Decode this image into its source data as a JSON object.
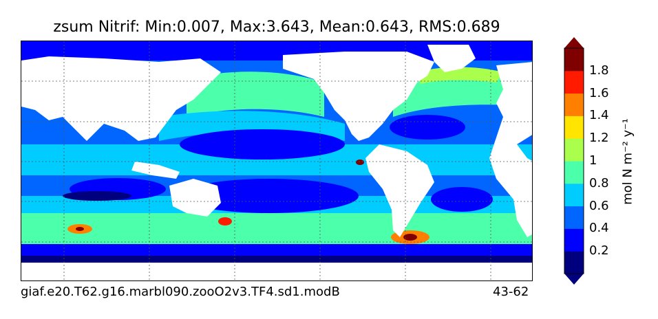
{
  "title": "zsum Nitrif: Min:0.007, Max:3.643, Mean:0.643, RMS:0.689",
  "caption_left": "giaf.e20.T62.g16.marbl090.zooO2v3.TF4.sd1.modB",
  "caption_right": "43-62",
  "colorbar": {
    "label": "mol N m⁻² y⁻¹",
    "ticks": [
      "0.2",
      "0.4",
      "0.6",
      "0.8",
      "1",
      "1.2",
      "1.4",
      "1.6",
      "1.8"
    ],
    "levels": [
      0,
      0.2,
      0.4,
      0.6,
      0.8,
      1.0,
      1.2,
      1.4,
      1.6,
      1.8,
      2.0
    ],
    "colors": [
      "#00007f",
      "#0000ff",
      "#0066ff",
      "#00ccff",
      "#4cffaa",
      "#aaff4c",
      "#ffe500",
      "#ff8000",
      "#ff1a00",
      "#7f0000"
    ],
    "extend": "both"
  },
  "map": {
    "projection": "global lat-lon",
    "land_color": "#ffffff",
    "gridlines": "dotted"
  }
}
